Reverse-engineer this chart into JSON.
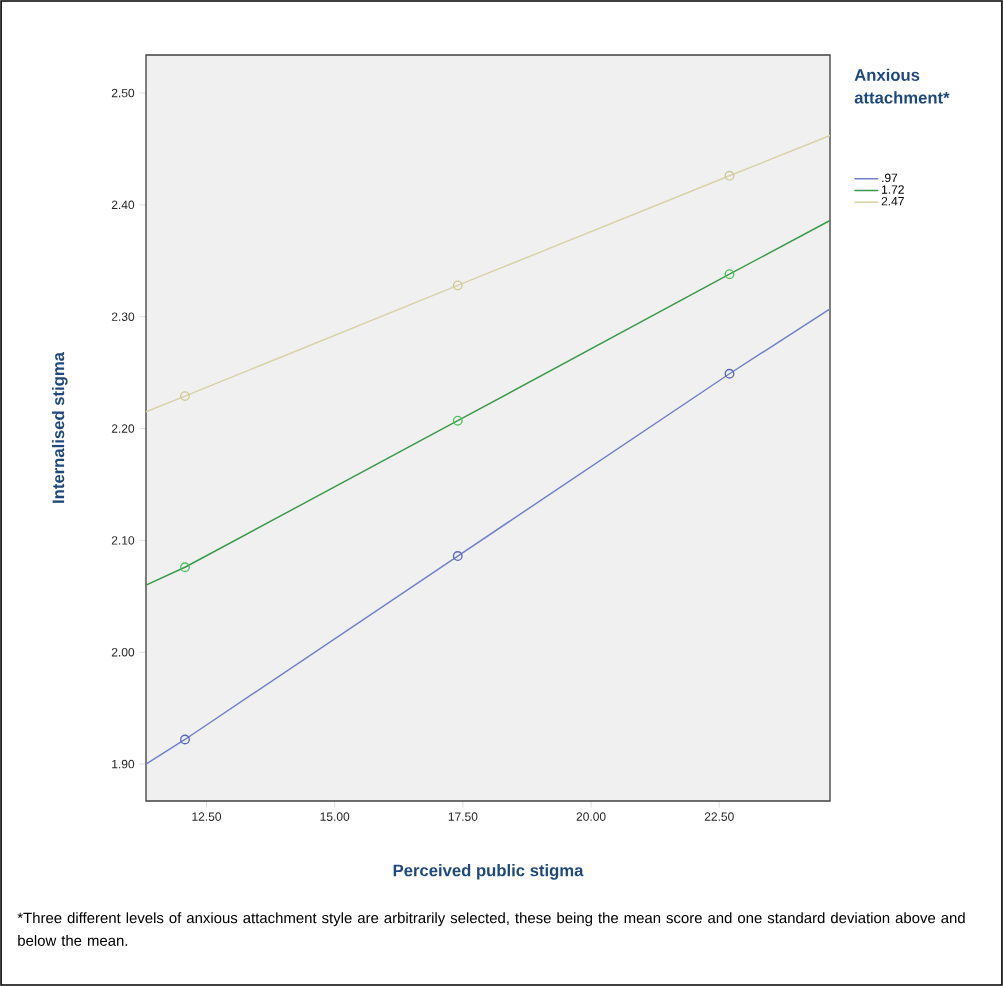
{
  "chart_data": {
    "type": "line",
    "xlabel": "Perceived public stigma",
    "ylabel": "Internalised stigma",
    "legend_title": "Anxious attachment*",
    "legend": "top right",
    "grid": false,
    "xlim": [
      11.32,
      24.66
    ],
    "ylim": [
      1.867,
      2.534
    ],
    "xticks": [
      {
        "value": 12.5,
        "label": "12.50"
      },
      {
        "value": 15,
        "label": "15.00"
      },
      {
        "value": 17.5,
        "label": "17.50"
      },
      {
        "value": 20,
        "label": "20.00"
      },
      {
        "value": 22.5,
        "label": "22.50"
      }
    ],
    "yticks": [
      {
        "value": 1.9,
        "label": "1.90"
      },
      {
        "value": 2.0,
        "label": "2.00"
      },
      {
        "value": 2.1,
        "label": "2.10"
      },
      {
        "value": 2.2,
        "label": "2.20"
      },
      {
        "value": 2.3,
        "label": "2.30"
      },
      {
        "value": 2.4,
        "label": "2.40"
      },
      {
        "value": 2.5,
        "label": "2.50"
      }
    ],
    "series": [
      {
        "name": ".97",
        "color": "#7080c8",
        "marker": "none",
        "x": [
          11.32,
          12.08,
          17.4,
          22.7,
          24.66
        ],
        "values": [
          1.9,
          1.922,
          2.086,
          2.249,
          2.307
        ]
      },
      {
        "name": "1.72",
        "color": "#3a9a48",
        "marker": "none",
        "x": [
          11.32,
          12.08,
          17.4,
          22.7,
          24.66
        ],
        "values": [
          2.06,
          2.076,
          2.207,
          2.338,
          2.386
        ]
      },
      {
        "name": "2.47",
        "color": "#d8d2a6",
        "marker": "none",
        "x": [
          11.32,
          12.08,
          17.4,
          22.7,
          24.66
        ],
        "values": [
          2.215,
          2.229,
          2.328,
          2.426,
          2.462
        ]
      },
      {
        "type": "scatter",
        "color": "#5868c0",
        "marker": "circle",
        "x": [
          12.08,
          17.4,
          22.7
        ],
        "values": [
          1.922,
          2.086,
          2.249
        ]
      },
      {
        "type": "scatter",
        "color": "#50c060",
        "marker": "circle",
        "x": [
          12.08,
          17.4,
          22.7
        ],
        "values": [
          2.076,
          2.207,
          2.338
        ]
      },
      {
        "type": "scatter",
        "color": "#d0c896",
        "marker": "circle",
        "x": [
          12.08,
          17.4,
          22.7
        ],
        "values": [
          2.229,
          2.328,
          2.426
        ]
      }
    ],
    "annotations": [
      "*Three different levels of anxious attachment style are arbitrarily selected, these being the mean score and one standard deviation above and below the mean."
    ]
  }
}
